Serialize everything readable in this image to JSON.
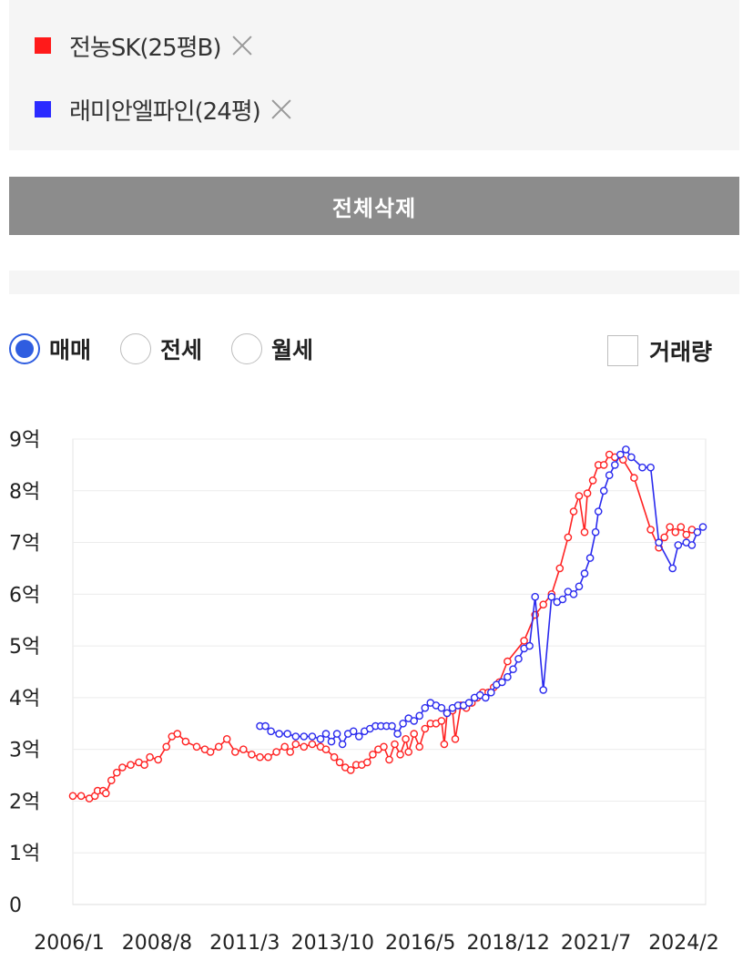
{
  "compare_list": {
    "items": [
      {
        "label": "전농SK(25평B)",
        "color": "#ff1a1a"
      },
      {
        "label": "래미안엘파인(24평)",
        "color": "#2a2aff"
      }
    ],
    "delete_all_label": "전체삭제"
  },
  "filters": {
    "options": [
      {
        "label": "매매",
        "selected": true
      },
      {
        "label": "전세",
        "selected": false
      },
      {
        "label": "월세",
        "selected": false
      }
    ],
    "volume_label": "거래량",
    "volume_checked": false
  },
  "chart_data": {
    "type": "line",
    "title": "",
    "xlabel": "",
    "ylabel": "",
    "y_ticks": [
      "0",
      "1억",
      "2억",
      "3억",
      "4억",
      "5억",
      "6억",
      "7억",
      "8억",
      "9억"
    ],
    "x_ticks": [
      "2006/1",
      "2008/8",
      "2011/3",
      "2013/10",
      "2016/5",
      "2018/12",
      "2021/7",
      "2024/2"
    ],
    "xlim": [
      "2006-01",
      "2025-03"
    ],
    "ylim": [
      0,
      9
    ],
    "y_unit": "억",
    "grid": true,
    "series": [
      {
        "name": "전농SK(25평B)",
        "color": "#ff2222",
        "points": [
          [
            "2006-01",
            2.1
          ],
          [
            "2006-04",
            2.1
          ],
          [
            "2006-07",
            2.05
          ],
          [
            "2006-09",
            2.1
          ],
          [
            "2006-10",
            2.2
          ],
          [
            "2006-12",
            2.2
          ],
          [
            "2007-01",
            2.15
          ],
          [
            "2007-03",
            2.4
          ],
          [
            "2007-05",
            2.55
          ],
          [
            "2007-07",
            2.65
          ],
          [
            "2007-10",
            2.7
          ],
          [
            "2008-01",
            2.75
          ],
          [
            "2008-03",
            2.7
          ],
          [
            "2008-05",
            2.85
          ],
          [
            "2008-08",
            2.8
          ],
          [
            "2008-11",
            3.05
          ],
          [
            "2009-01",
            3.25
          ],
          [
            "2009-03",
            3.3
          ],
          [
            "2009-06",
            3.15
          ],
          [
            "2009-10",
            3.05
          ],
          [
            "2010-01",
            3.0
          ],
          [
            "2010-03",
            2.95
          ],
          [
            "2010-06",
            3.05
          ],
          [
            "2010-09",
            3.2
          ],
          [
            "2010-12",
            2.95
          ],
          [
            "2011-03",
            3.0
          ],
          [
            "2011-06",
            2.9
          ],
          [
            "2011-09",
            2.85
          ],
          [
            "2011-12",
            2.85
          ],
          [
            "2012-03",
            2.95
          ],
          [
            "2012-06",
            3.05
          ],
          [
            "2012-08",
            2.95
          ],
          [
            "2012-10",
            3.1
          ],
          [
            "2013-01",
            3.05
          ],
          [
            "2013-04",
            3.1
          ],
          [
            "2013-07",
            3.05
          ],
          [
            "2013-09",
            3.0
          ],
          [
            "2013-12",
            2.85
          ],
          [
            "2014-02",
            2.75
          ],
          [
            "2014-04",
            2.65
          ],
          [
            "2014-06",
            2.6
          ],
          [
            "2014-08",
            2.7
          ],
          [
            "2014-10",
            2.7
          ],
          [
            "2014-12",
            2.75
          ],
          [
            "2015-02",
            2.9
          ],
          [
            "2015-04",
            3.0
          ],
          [
            "2015-06",
            3.05
          ],
          [
            "2015-08",
            2.8
          ],
          [
            "2015-10",
            3.1
          ],
          [
            "2015-12",
            2.9
          ],
          [
            "2016-02",
            3.2
          ],
          [
            "2016-03",
            2.95
          ],
          [
            "2016-05",
            3.3
          ],
          [
            "2016-07",
            3.05
          ],
          [
            "2016-09",
            3.4
          ],
          [
            "2016-11",
            3.5
          ],
          [
            "2017-01",
            3.5
          ],
          [
            "2017-03",
            3.55
          ],
          [
            "2017-04",
            3.1
          ],
          [
            "2017-05",
            3.7
          ],
          [
            "2017-07",
            3.75
          ],
          [
            "2017-08",
            3.2
          ],
          [
            "2017-10",
            3.85
          ],
          [
            "2017-12",
            3.8
          ],
          [
            "2018-02",
            3.9
          ],
          [
            "2018-04",
            4.0
          ],
          [
            "2018-06",
            4.1
          ],
          [
            "2018-08",
            4.1
          ],
          [
            "2018-10",
            4.2
          ],
          [
            "2018-12",
            4.3
          ],
          [
            "2019-03",
            4.7
          ],
          [
            "2019-09",
            5.1
          ],
          [
            "2020-01",
            5.6
          ],
          [
            "2020-04",
            5.8
          ],
          [
            "2020-07",
            6.0
          ],
          [
            "2020-10",
            6.5
          ],
          [
            "2021-01",
            7.1
          ],
          [
            "2021-03",
            7.6
          ],
          [
            "2021-05",
            7.9
          ],
          [
            "2021-07",
            7.2
          ],
          [
            "2021-08",
            7.95
          ],
          [
            "2021-10",
            8.2
          ],
          [
            "2021-12",
            8.5
          ],
          [
            "2022-02",
            8.5
          ],
          [
            "2022-04",
            8.7
          ],
          [
            "2022-06",
            8.65
          ],
          [
            "2022-09",
            8.6
          ],
          [
            "2023-01",
            8.25
          ],
          [
            "2023-07",
            7.25
          ],
          [
            "2023-10",
            6.9
          ],
          [
            "2023-12",
            7.1
          ],
          [
            "2024-02",
            7.3
          ],
          [
            "2024-04",
            7.2
          ],
          [
            "2024-06",
            7.3
          ],
          [
            "2024-08",
            7.15
          ],
          [
            "2024-10",
            7.25
          ]
        ]
      },
      {
        "name": "래미안엘파인(24평)",
        "color": "#2a2aee",
        "points": [
          [
            "2011-09",
            3.45
          ],
          [
            "2011-11",
            3.45
          ],
          [
            "2012-01",
            3.35
          ],
          [
            "2012-04",
            3.3
          ],
          [
            "2012-07",
            3.3
          ],
          [
            "2012-10",
            3.25
          ],
          [
            "2013-01",
            3.25
          ],
          [
            "2013-04",
            3.25
          ],
          [
            "2013-07",
            3.2
          ],
          [
            "2013-09",
            3.3
          ],
          [
            "2013-11",
            3.15
          ],
          [
            "2014-01",
            3.3
          ],
          [
            "2014-03",
            3.1
          ],
          [
            "2014-05",
            3.3
          ],
          [
            "2014-07",
            3.35
          ],
          [
            "2014-09",
            3.25
          ],
          [
            "2014-11",
            3.35
          ],
          [
            "2015-01",
            3.4
          ],
          [
            "2015-03",
            3.45
          ],
          [
            "2015-05",
            3.45
          ],
          [
            "2015-07",
            3.45
          ],
          [
            "2015-09",
            3.45
          ],
          [
            "2015-11",
            3.3
          ],
          [
            "2016-01",
            3.5
          ],
          [
            "2016-03",
            3.6
          ],
          [
            "2016-05",
            3.55
          ],
          [
            "2016-07",
            3.65
          ],
          [
            "2016-09",
            3.8
          ],
          [
            "2016-11",
            3.9
          ],
          [
            "2017-01",
            3.85
          ],
          [
            "2017-03",
            3.8
          ],
          [
            "2017-05",
            3.7
          ],
          [
            "2017-07",
            3.8
          ],
          [
            "2017-09",
            3.85
          ],
          [
            "2017-11",
            3.85
          ],
          [
            "2018-01",
            3.9
          ],
          [
            "2018-03",
            4.0
          ],
          [
            "2018-05",
            4.05
          ],
          [
            "2018-07",
            4.0
          ],
          [
            "2018-09",
            4.1
          ],
          [
            "2018-11",
            4.25
          ],
          [
            "2019-01",
            4.3
          ],
          [
            "2019-03",
            4.4
          ],
          [
            "2019-05",
            4.55
          ],
          [
            "2019-07",
            4.75
          ],
          [
            "2019-09",
            4.95
          ],
          [
            "2019-11",
            5.0
          ],
          [
            "2020-01",
            5.95
          ],
          [
            "2020-04",
            4.15
          ],
          [
            "2020-07",
            5.95
          ],
          [
            "2020-09",
            5.85
          ],
          [
            "2020-11",
            5.9
          ],
          [
            "2021-01",
            6.05
          ],
          [
            "2021-03",
            6.0
          ],
          [
            "2021-05",
            6.15
          ],
          [
            "2021-07",
            6.4
          ],
          [
            "2021-09",
            6.7
          ],
          [
            "2021-11",
            7.2
          ],
          [
            "2021-12",
            7.6
          ],
          [
            "2022-02",
            8.0
          ],
          [
            "2022-04",
            8.3
          ],
          [
            "2022-06",
            8.5
          ],
          [
            "2022-08",
            8.7
          ],
          [
            "2022-10",
            8.8
          ],
          [
            "2022-12",
            8.65
          ],
          [
            "2023-04",
            8.45
          ],
          [
            "2023-07",
            8.45
          ],
          [
            "2023-10",
            7.0
          ],
          [
            "2024-03",
            6.5
          ],
          [
            "2024-05",
            6.95
          ],
          [
            "2024-08",
            7.0
          ],
          [
            "2024-10",
            6.95
          ],
          [
            "2024-12",
            7.2
          ],
          [
            "2025-02",
            7.3
          ]
        ]
      }
    ]
  }
}
